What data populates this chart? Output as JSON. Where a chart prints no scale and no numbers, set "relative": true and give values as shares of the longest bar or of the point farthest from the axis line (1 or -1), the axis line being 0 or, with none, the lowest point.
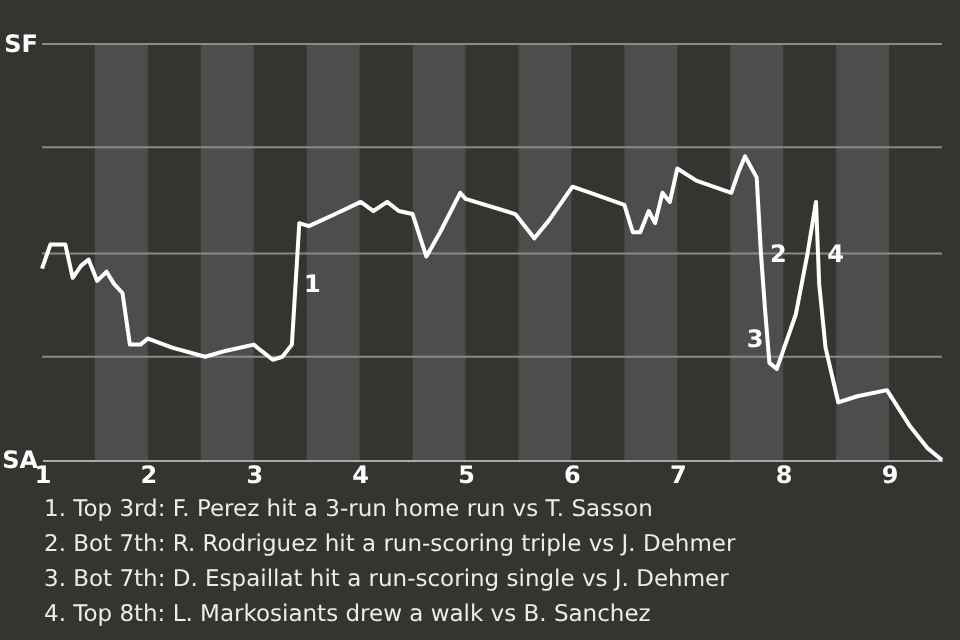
{
  "chart_data": {
    "type": "line",
    "relative": true,
    "x": [
      1,
      1.08,
      1.22,
      1.29,
      1.37,
      1.44,
      1.52,
      1.61,
      1.68,
      1.76,
      1.83,
      1.93,
      2,
      2.23,
      2.54,
      2.74,
      3,
      3.07,
      3.18,
      3.27,
      3.36,
      3.43,
      3.52,
      3.77,
      4.01,
      4.13,
      4.26,
      4.37,
      4.5,
      4.63,
      4.76,
      4.95,
      5,
      5.47,
      5.65,
      5.79,
      6.01,
      6.18,
      6.5,
      6.58,
      6.65,
      6.73,
      6.79,
      6.86,
      6.93,
      7,
      7.18,
      7.51,
      7.58,
      7.64,
      7.75,
      7.79,
      7.83,
      7.87,
      7.94,
      8,
      8.12,
      8.23,
      8.31,
      8.34,
      8.4,
      8.52,
      8.7,
      8.98,
      9.2,
      9.36,
      9.5
    ],
    "series": [
      {
        "color": "#ffffff",
        "values": [
          0.63,
          0.71,
          0.71,
          0.6,
          0.64,
          0.66,
          0.59,
          0.62,
          0.58,
          0.55,
          0.38,
          0.38,
          0.4,
          0.37,
          0.34,
          0.36,
          0.38,
          0.36,
          0.33,
          0.34,
          0.38,
          0.78,
          0.77,
          0.81,
          0.85,
          0.82,
          0.85,
          0.82,
          0.81,
          0.67,
          0.75,
          0.88,
          0.86,
          0.81,
          0.73,
          0.79,
          0.9,
          0.88,
          0.84,
          0.75,
          0.75,
          0.82,
          0.78,
          0.88,
          0.85,
          0.96,
          0.92,
          0.88,
          0.95,
          1,
          0.93,
          0.68,
          0.49,
          0.32,
          0.3,
          0.36,
          0.48,
          0.68,
          0.85,
          0.58,
          0.37,
          0.19,
          0.21,
          0.23,
          0.11,
          0.04,
          0
        ]
      }
    ],
    "xlim": [
      1,
      9.5
    ],
    "xticks": [
      1,
      2,
      3,
      4,
      5,
      6,
      7,
      8,
      9
    ],
    "ref_lines": [
      {
        "axis": "y",
        "value": 0.34,
        "color": "#8a8a88"
      },
      {
        "axis": "y",
        "value": 0.68,
        "color": "#8a8a88"
      },
      {
        "axis": "y",
        "value": 1.03,
        "color": "#8a8a88"
      },
      {
        "axis": "y",
        "value": 1.37,
        "color": "#8a8a88"
      }
    ],
    "marker": "none",
    "bands": [
      {
        "axis": "x",
        "from": 1.5,
        "to": 2,
        "color": "#4e4d4b"
      },
      {
        "axis": "x",
        "from": 2.5,
        "to": 3,
        "color": "#4e4d4b"
      },
      {
        "axis": "x",
        "from": 3.5,
        "to": 4,
        "color": "#4e4d4b"
      },
      {
        "axis": "x",
        "from": 4.5,
        "to": 5,
        "color": "#4e4d4b"
      },
      {
        "axis": "x",
        "from": 5.5,
        "to": 6,
        "color": "#4e4d4b"
      },
      {
        "axis": "x",
        "from": 6.5,
        "to": 7,
        "color": "#4e4d4b"
      },
      {
        "axis": "x",
        "from": 7.5,
        "to": 8,
        "color": "#4e4d4b"
      },
      {
        "axis": "x",
        "from": 8.5,
        "to": 9,
        "color": "#4e4d4b"
      }
    ],
    "annotations": [
      {
        "text": "1",
        "x": 3.4,
        "y": 0.58
      },
      {
        "text": "2",
        "x": 7.8,
        "y": 0.68
      },
      {
        "text": "3",
        "x": 7.58,
        "y": 0.4
      },
      {
        "text": "4",
        "x": 8.34,
        "y": 0.68
      },
      "SF",
      "SA",
      "1. Top 3rd: F. Perez hit a 3-run home run vs T. Sasson",
      "2. Bot 7th: R. Rodriguez hit a run-scoring triple vs J. Dehmer",
      "3. Bot 7th: D. Espaillat hit a run-scoring single vs J. Dehmer",
      "4. Top 8th: L. Markosiants drew a walk vs B. Sanchez"
    ]
  }
}
